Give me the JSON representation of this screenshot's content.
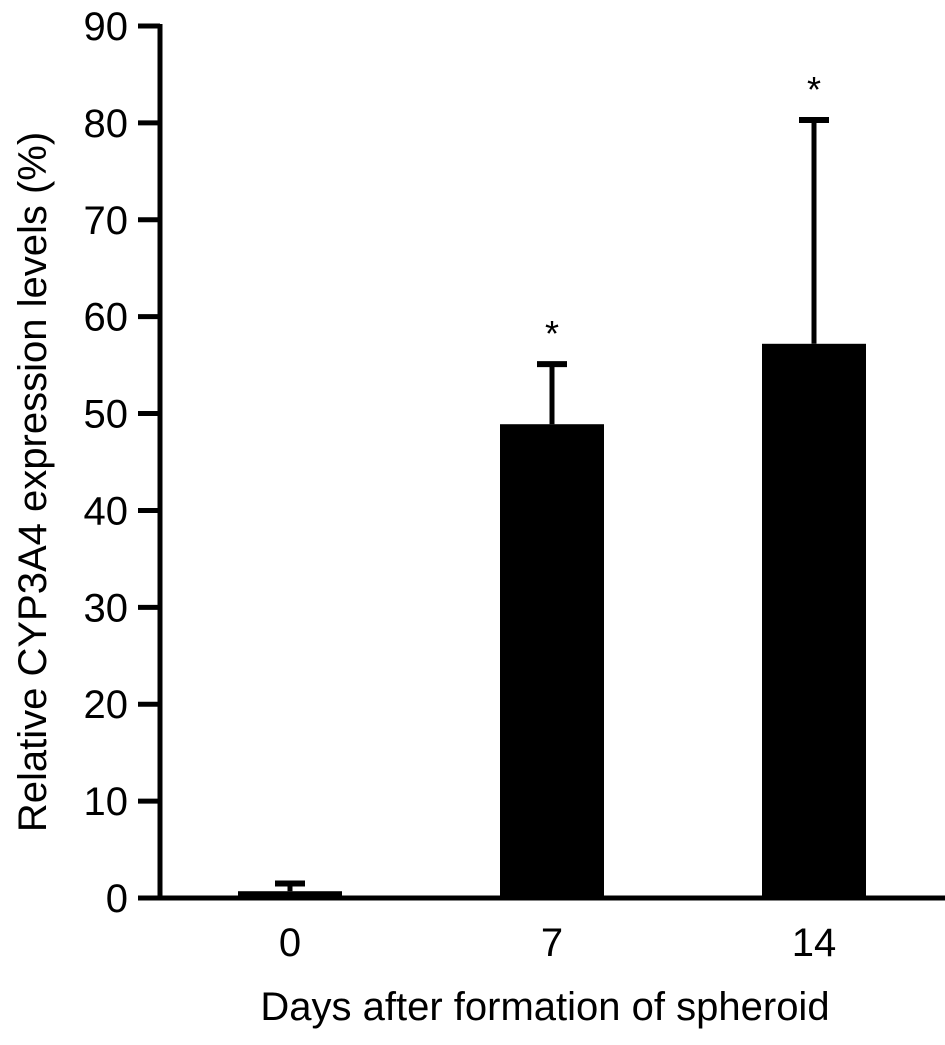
{
  "chart_data": {
    "type": "bar",
    "xlabel": "Days after formation of spheroid",
    "ylabel": "Relative CYP3A4 expression levels (%)",
    "categories": [
      "0",
      "7",
      "14"
    ],
    "values": [
      0.7,
      48.9,
      57.2
    ],
    "error_upper": [
      1.5,
      55.1,
      80.3
    ],
    "significance": [
      "",
      "*",
      "*"
    ],
    "ylim": [
      0,
      90
    ],
    "yticks": [
      0,
      10,
      20,
      30,
      40,
      50,
      60,
      70,
      80,
      90
    ],
    "grid": false,
    "legend": "none",
    "bar_color": "#000000"
  }
}
